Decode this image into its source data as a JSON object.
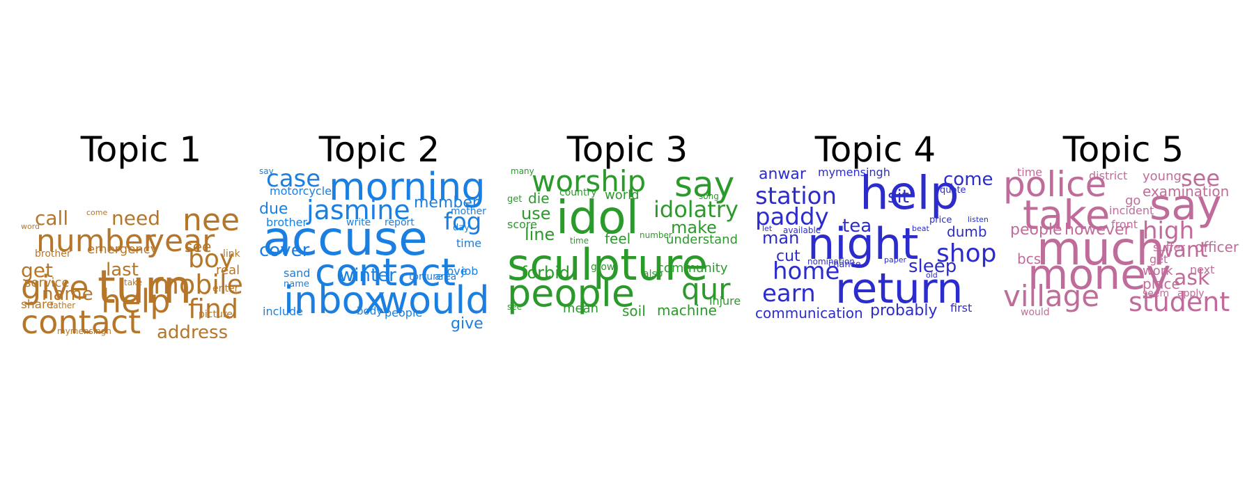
{
  "topics": [
    {
      "title": "Topic 1",
      "color": "#b5762a",
      "words": [
        "turn",
        "number",
        "year",
        "nee",
        "give",
        "help",
        "contact",
        "mobile",
        "find",
        "boy",
        "call",
        "need",
        "address",
        "get",
        "last",
        "name",
        "see",
        "emergency",
        "service",
        "real",
        "share",
        "brother",
        "link",
        "enter",
        "picture",
        "take",
        "father",
        "mymensingh",
        "come",
        "word"
      ]
    },
    {
      "title": "Topic 2",
      "color": "#1a7fe0",
      "words": [
        "accuse",
        "morning",
        "contact",
        "inbox",
        "would",
        "jasmine",
        "case",
        "fog",
        "winter",
        "cover",
        "member",
        "due",
        "give",
        "include",
        "motorcycle",
        "brother",
        "write",
        "report",
        "mother",
        "time",
        "day",
        "love",
        "job",
        "sand",
        "torture",
        "area",
        "name",
        "people",
        "body",
        "say"
      ]
    },
    {
      "title": "Topic 3",
      "color": "#2a9a2a",
      "words": [
        "sculpture",
        "idol",
        "people",
        "worship",
        "say",
        "qur",
        "idolatry",
        "make",
        "line",
        "use",
        "die",
        "understand",
        "community",
        "forbid",
        "machine",
        "soil",
        "mean",
        "feel",
        "world",
        "country",
        "score",
        "song",
        "number",
        "grow",
        "also",
        "time",
        "injure",
        "get",
        "many",
        "see"
      ]
    },
    {
      "title": "Topic 4",
      "color": "#2c2ccc",
      "words": [
        "help",
        "night",
        "return",
        "station",
        "paddy",
        "home",
        "earn",
        "shop",
        "sleep",
        "tea",
        "sit",
        "come",
        "man",
        "cut",
        "anwar",
        "mymensingh",
        "dumb",
        "communication",
        "probably",
        "quote",
        "price",
        "listen",
        "chance",
        "nomination",
        "available",
        "beat",
        "let",
        "paper",
        "old",
        "first"
      ]
    },
    {
      "title": "Topic 5",
      "color": "#c06c9a",
      "words": [
        "much",
        "money",
        "take",
        "police",
        "say",
        "village",
        "student",
        "high",
        "want",
        "ask",
        "see",
        "examination",
        "people",
        "however",
        "officer",
        "young",
        "district",
        "time",
        "incident",
        "go",
        "front",
        "suffer",
        "get",
        "bcs",
        "work",
        "next",
        "place",
        "seem",
        "apply",
        "would"
      ]
    }
  ]
}
